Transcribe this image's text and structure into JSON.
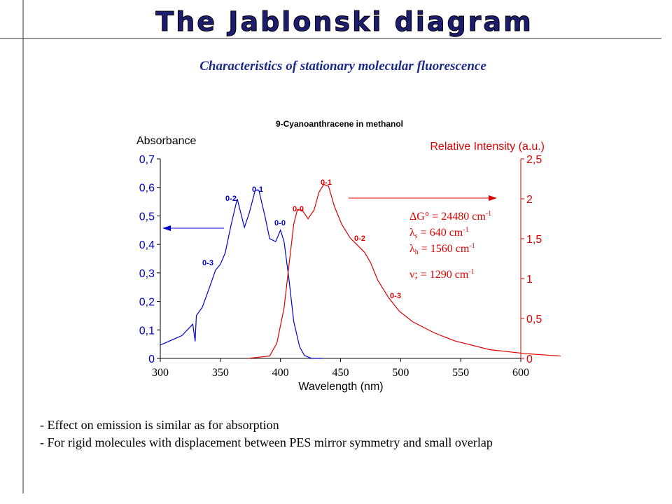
{
  "header": {
    "title": "The Jablonski diagram",
    "subtitle": "Characteristics of stationary molecular fluorescence"
  },
  "chart_data": {
    "type": "line",
    "title": "9-Cyanoanthracene in methanol",
    "x_label": "Wavelength (nm)",
    "y_label": "Absorbance",
    "y2_label": "Relative Intensity (a.u.)",
    "xlim": [
      300,
      600
    ],
    "xticks": [
      300,
      350,
      400,
      450,
      500,
      550,
      600
    ],
    "ylim": [
      0,
      0.7
    ],
    "yticks": [
      0,
      {
        "value": 0.1,
        "label": "0,1"
      },
      {
        "value": 0.2,
        "label": "0,2"
      },
      {
        "value": 0.3,
        "label": "0,3"
      },
      {
        "value": 0.4,
        "label": "0,4"
      },
      {
        "value": 0.5,
        "label": "0,5"
      },
      {
        "value": 0.6,
        "label": "0,6"
      },
      {
        "value": 0.7,
        "label": "0,7"
      }
    ],
    "y2lim": [
      0,
      2.5
    ],
    "y2ticks": [
      0,
      {
        "value": 0.5,
        "label": "0,5"
      },
      1,
      {
        "value": 1.5,
        "label": "1,5"
      },
      2,
      {
        "value": 2.5,
        "label": "2,5"
      }
    ],
    "series": [
      {
        "name": "Absorbance",
        "color": "#0000cc",
        "x": [
          300,
          318,
          327,
          329,
          330,
          335,
          341,
          346,
          350,
          354,
          359,
          364,
          367,
          370,
          374,
          379,
          382,
          387,
          391,
          396,
          400,
          403,
          407,
          411,
          416,
          420,
          426,
          435
        ],
        "values": [
          0.047,
          0.08,
          0.12,
          0.06,
          0.15,
          0.18,
          0.25,
          0.31,
          0.33,
          0.37,
          0.47,
          0.56,
          0.51,
          0.46,
          0.51,
          0.59,
          0.59,
          0.5,
          0.42,
          0.41,
          0.45,
          0.41,
          0.28,
          0.13,
          0.04,
          0.01,
          0,
          0
        ]
      },
      {
        "name": "Relative Intensity (a.u.)",
        "color": "#dd0000",
        "axis": "y2",
        "x": [
          373,
          391,
          397,
          403,
          407,
          411,
          414,
          418,
          423,
          428,
          432,
          436,
          440,
          445,
          451,
          458,
          464,
          470,
          475,
          481,
          490,
          499,
          510,
          528,
          545,
          574,
          604,
          633
        ],
        "values": [
          0,
          0.03,
          0.19,
          0.63,
          1.16,
          1.68,
          1.86,
          1.86,
          1.75,
          1.86,
          2.08,
          2.18,
          2.16,
          1.9,
          1.68,
          1.51,
          1.42,
          1.33,
          1.2,
          0.98,
          0.76,
          0.59,
          0.46,
          0.32,
          0.22,
          0.11,
          0.06,
          0.03
        ]
      }
    ],
    "annotations": [
      "0-3",
      "0-2",
      "0-1",
      "0-0",
      "0-0",
      "0-1",
      "0-2",
      "0-3"
    ],
    "parameters": [
      {
        "symbol": "ΔG°",
        "value": " = 24480 cm",
        "sup": "-1"
      },
      {
        "symbol": "λ",
        "sub": "s",
        "value": " = 640 cm",
        "sup": "-1"
      },
      {
        "symbol": "λ",
        "sub": "h",
        "value": " = 1560 cm",
        "sup": "-1"
      },
      {
        "symbol": "ν;",
        "value": " = 1290 cm",
        "sup": "-1"
      }
    ]
  },
  "bullets": [
    "- Effect on emission is similar as for absorption",
    "- For rigid molecules with displacement between PES mirror symmetry and small overlap"
  ]
}
